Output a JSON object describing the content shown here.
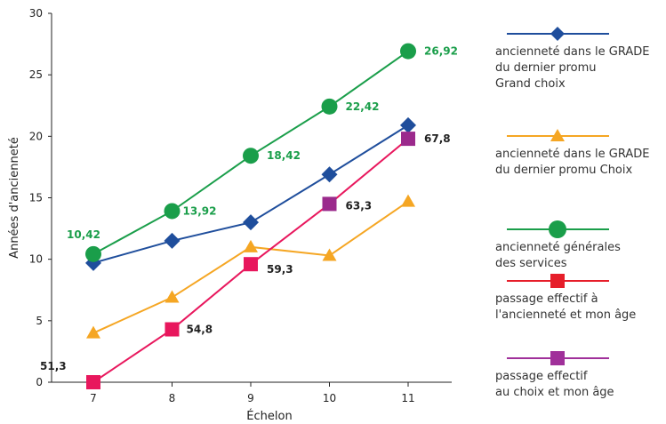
{
  "chart_data": {
    "type": "line",
    "xlabel": "Échelon",
    "ylabel": "Années d'ancienneté",
    "x_categories": [
      "7",
      "8",
      "9",
      "10",
      "11"
    ],
    "ylim": [
      0,
      30
    ],
    "yticks": [
      "0",
      "5",
      "10",
      "15",
      "20",
      "25",
      "30"
    ],
    "grid": false,
    "legend_position": "right",
    "series": [
      {
        "name": "ancienneté dans le GRADE\ndu dernier promu\nGrand choix",
        "color": "#1f4e9c",
        "marker": "diamond",
        "values": [
          9.7,
          11.5,
          13.0,
          16.9,
          20.9
        ],
        "point_labels": []
      },
      {
        "name": "ancienneté dans le GRADE\ndu dernier promu Choix",
        "color": "#f5a623",
        "marker": "triangle",
        "values": [
          4.0,
          6.9,
          11.0,
          10.3,
          14.7
        ],
        "point_labels": []
      },
      {
        "name": "ancienneté générales\ndes services",
        "color": "#1a9e4a",
        "marker": "circle",
        "values": [
          10.42,
          13.92,
          18.42,
          22.42,
          26.92
        ],
        "point_labels": [
          "10,42",
          "13,92",
          "18,42",
          "22,42",
          "26,92"
        ]
      },
      {
        "name": "passage effectif à\nl'ancienneté et mon âge",
        "color": "#e8175d",
        "marker": "square",
        "values": [
          0,
          4.3,
          9.6,
          14.5,
          19.8
        ],
        "point_labels": [
          "51,3",
          "54,8",
          "59,3",
          "63,3",
          "67,8"
        ]
      },
      {
        "name": "passage effectif\nau choix et mon âge",
        "color": "#9b2a8c",
        "marker": "square",
        "values": [],
        "point_labels": []
      }
    ],
    "legend_marker_colors": [
      "#1f4e9c",
      "#f5a623",
      "#1a9e4a",
      "#e61e2a",
      "#a0309a"
    ]
  }
}
